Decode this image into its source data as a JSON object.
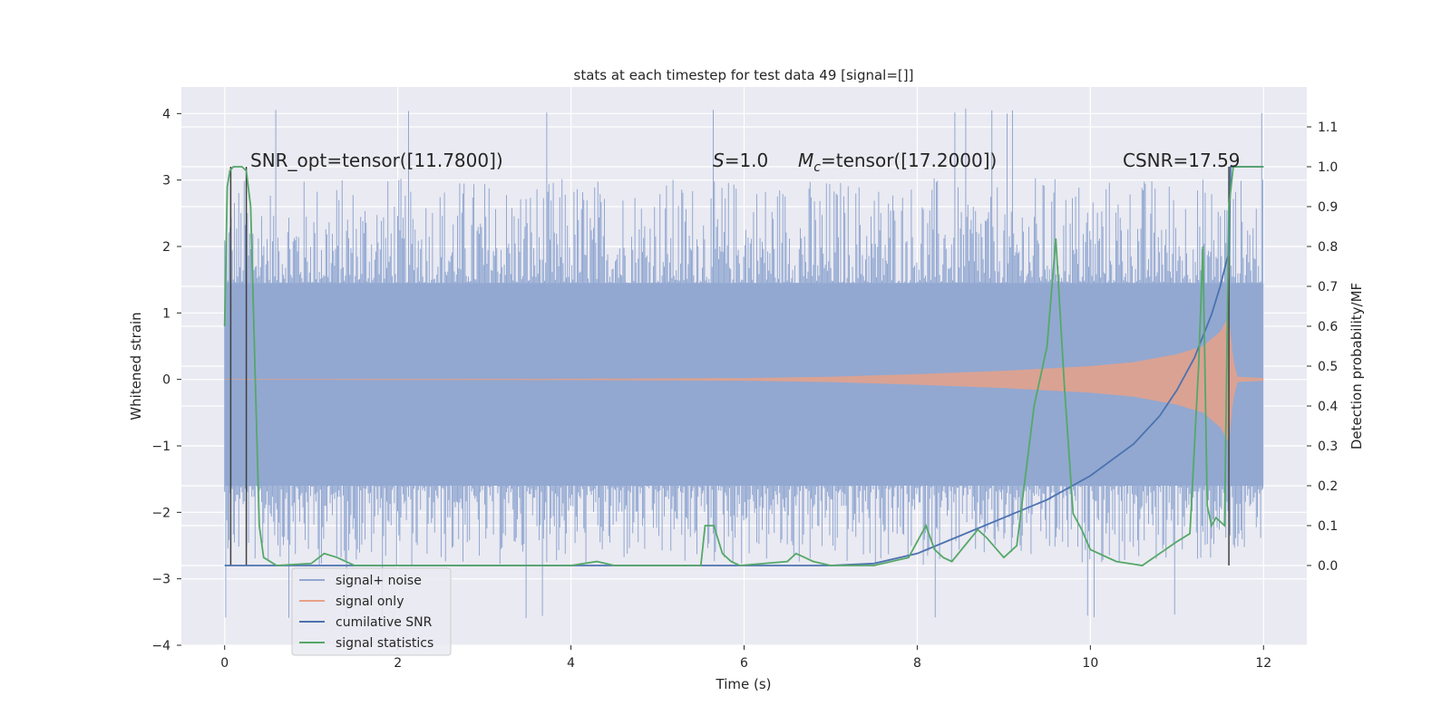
{
  "chart_data": {
    "type": "line",
    "title": "stats at each timestep for test data 49 [signal=[]]",
    "xlabel": "Time (s)",
    "ylabel": "Whitened strain",
    "y2label": "Detection probability/MF",
    "xlim": [
      -0.5,
      12.5
    ],
    "ylim": [
      -4,
      4.4
    ],
    "y2lim": [
      -0.2,
      1.2
    ],
    "xticks": [
      "0",
      "2",
      "4",
      "6",
      "8",
      "10",
      "12"
    ],
    "yticks": [
      "4",
      "3",
      "2",
      "1",
      "0",
      "−1",
      "−2",
      "−3",
      "−4"
    ],
    "y2ticks": [
      "1.1",
      "1.0",
      "0.9",
      "0.8",
      "0.7",
      "0.6",
      "0.5",
      "0.4",
      "0.3",
      "0.2",
      "0.1",
      "0.0"
    ],
    "grid": true,
    "legend_position": "lower-left",
    "annotations": {
      "snr_opt": "SNR_opt=tensor([11.7800])",
      "s": "=1.0",
      "s_symbol": "S",
      "mc": "=tensor([17.2000])",
      "mc_symbol": "M",
      "mc_sub": "c",
      "csnr": "CSNR=17.59"
    },
    "series": [
      {
        "name": "signal+ noise",
        "color": "#92a8d1",
        "axis": "left",
        "band": {
          "x": [
            0,
            12
          ],
          "lo": -1.6,
          "hi": 1.45,
          "spike_max": 4.08,
          "spike_min": -3.6
        }
      },
      {
        "name": "signal only",
        "color": "#e6a188",
        "axis": "left",
        "envelope": {
          "x": [
            0,
            4,
            6,
            7,
            8,
            9,
            10,
            10.5,
            11,
            11.3,
            11.5,
            11.6,
            11.65,
            11.7,
            12
          ],
          "amp": [
            0.005,
            0.01,
            0.02,
            0.04,
            0.08,
            0.13,
            0.2,
            0.26,
            0.38,
            0.5,
            0.72,
            0.95,
            0.3,
            0.04,
            0.02
          ]
        }
      },
      {
        "name": "cumilative SNR",
        "color": "#4c72b0",
        "axis": "right",
        "x": [
          0,
          7.0,
          7.5,
          8.0,
          8.5,
          9.0,
          9.5,
          10.0,
          10.5,
          10.8,
          11.0,
          11.2,
          11.4,
          11.5,
          11.58,
          11.6,
          11.62,
          11.65,
          11.7,
          12
        ],
        "y": [
          0.0,
          0.0,
          0.005,
          0.03,
          0.075,
          0.12,
          0.165,
          0.225,
          0.305,
          0.375,
          0.44,
          0.52,
          0.63,
          0.7,
          0.77,
          0.78,
          1.0,
          1.0,
          1.0,
          1.0
        ]
      },
      {
        "name": "signal statistics",
        "color": "#55a868",
        "axis": "right",
        "x": [
          0,
          0.03,
          0.06,
          0.1,
          0.15,
          0.2,
          0.25,
          0.3,
          0.35,
          0.4,
          0.45,
          0.6,
          1.0,
          1.15,
          1.3,
          1.5,
          2.0,
          3.0,
          4.0,
          4.3,
          4.5,
          5.0,
          5.5,
          5.55,
          5.65,
          5.75,
          5.85,
          5.95,
          6.5,
          6.6,
          6.8,
          7.0,
          7.5,
          7.9,
          8.1,
          8.2,
          8.3,
          8.4,
          8.7,
          8.8,
          9.0,
          9.15,
          9.35,
          9.5,
          9.6,
          9.7,
          9.8,
          9.9,
          10.0,
          10.3,
          10.6,
          11.0,
          11.15,
          11.25,
          11.3,
          11.35,
          11.4,
          11.45,
          11.55,
          11.6,
          11.65,
          11.7,
          11.8,
          12.0
        ],
        "y": [
          0.6,
          0.95,
          0.99,
          1.0,
          1.0,
          1.0,
          0.99,
          0.9,
          0.5,
          0.1,
          0.02,
          0.0,
          0.005,
          0.03,
          0.02,
          0.0,
          0.0,
          0.0,
          0.0,
          0.01,
          0.0,
          0.0,
          0.0,
          0.1,
          0.1,
          0.03,
          0.01,
          0.0,
          0.01,
          0.03,
          0.01,
          0.0,
          0.0,
          0.02,
          0.1,
          0.04,
          0.02,
          0.01,
          0.09,
          0.07,
          0.02,
          0.05,
          0.4,
          0.55,
          0.82,
          0.45,
          0.13,
          0.09,
          0.04,
          0.01,
          0.0,
          0.06,
          0.08,
          0.5,
          0.8,
          0.15,
          0.1,
          0.12,
          0.1,
          0.9,
          1.0,
          1.0,
          1.0,
          1.0
        ]
      }
    ],
    "markers": {
      "vertical_lines_x": [
        0.07,
        0.25,
        11.6
      ],
      "color": "#404040"
    }
  }
}
